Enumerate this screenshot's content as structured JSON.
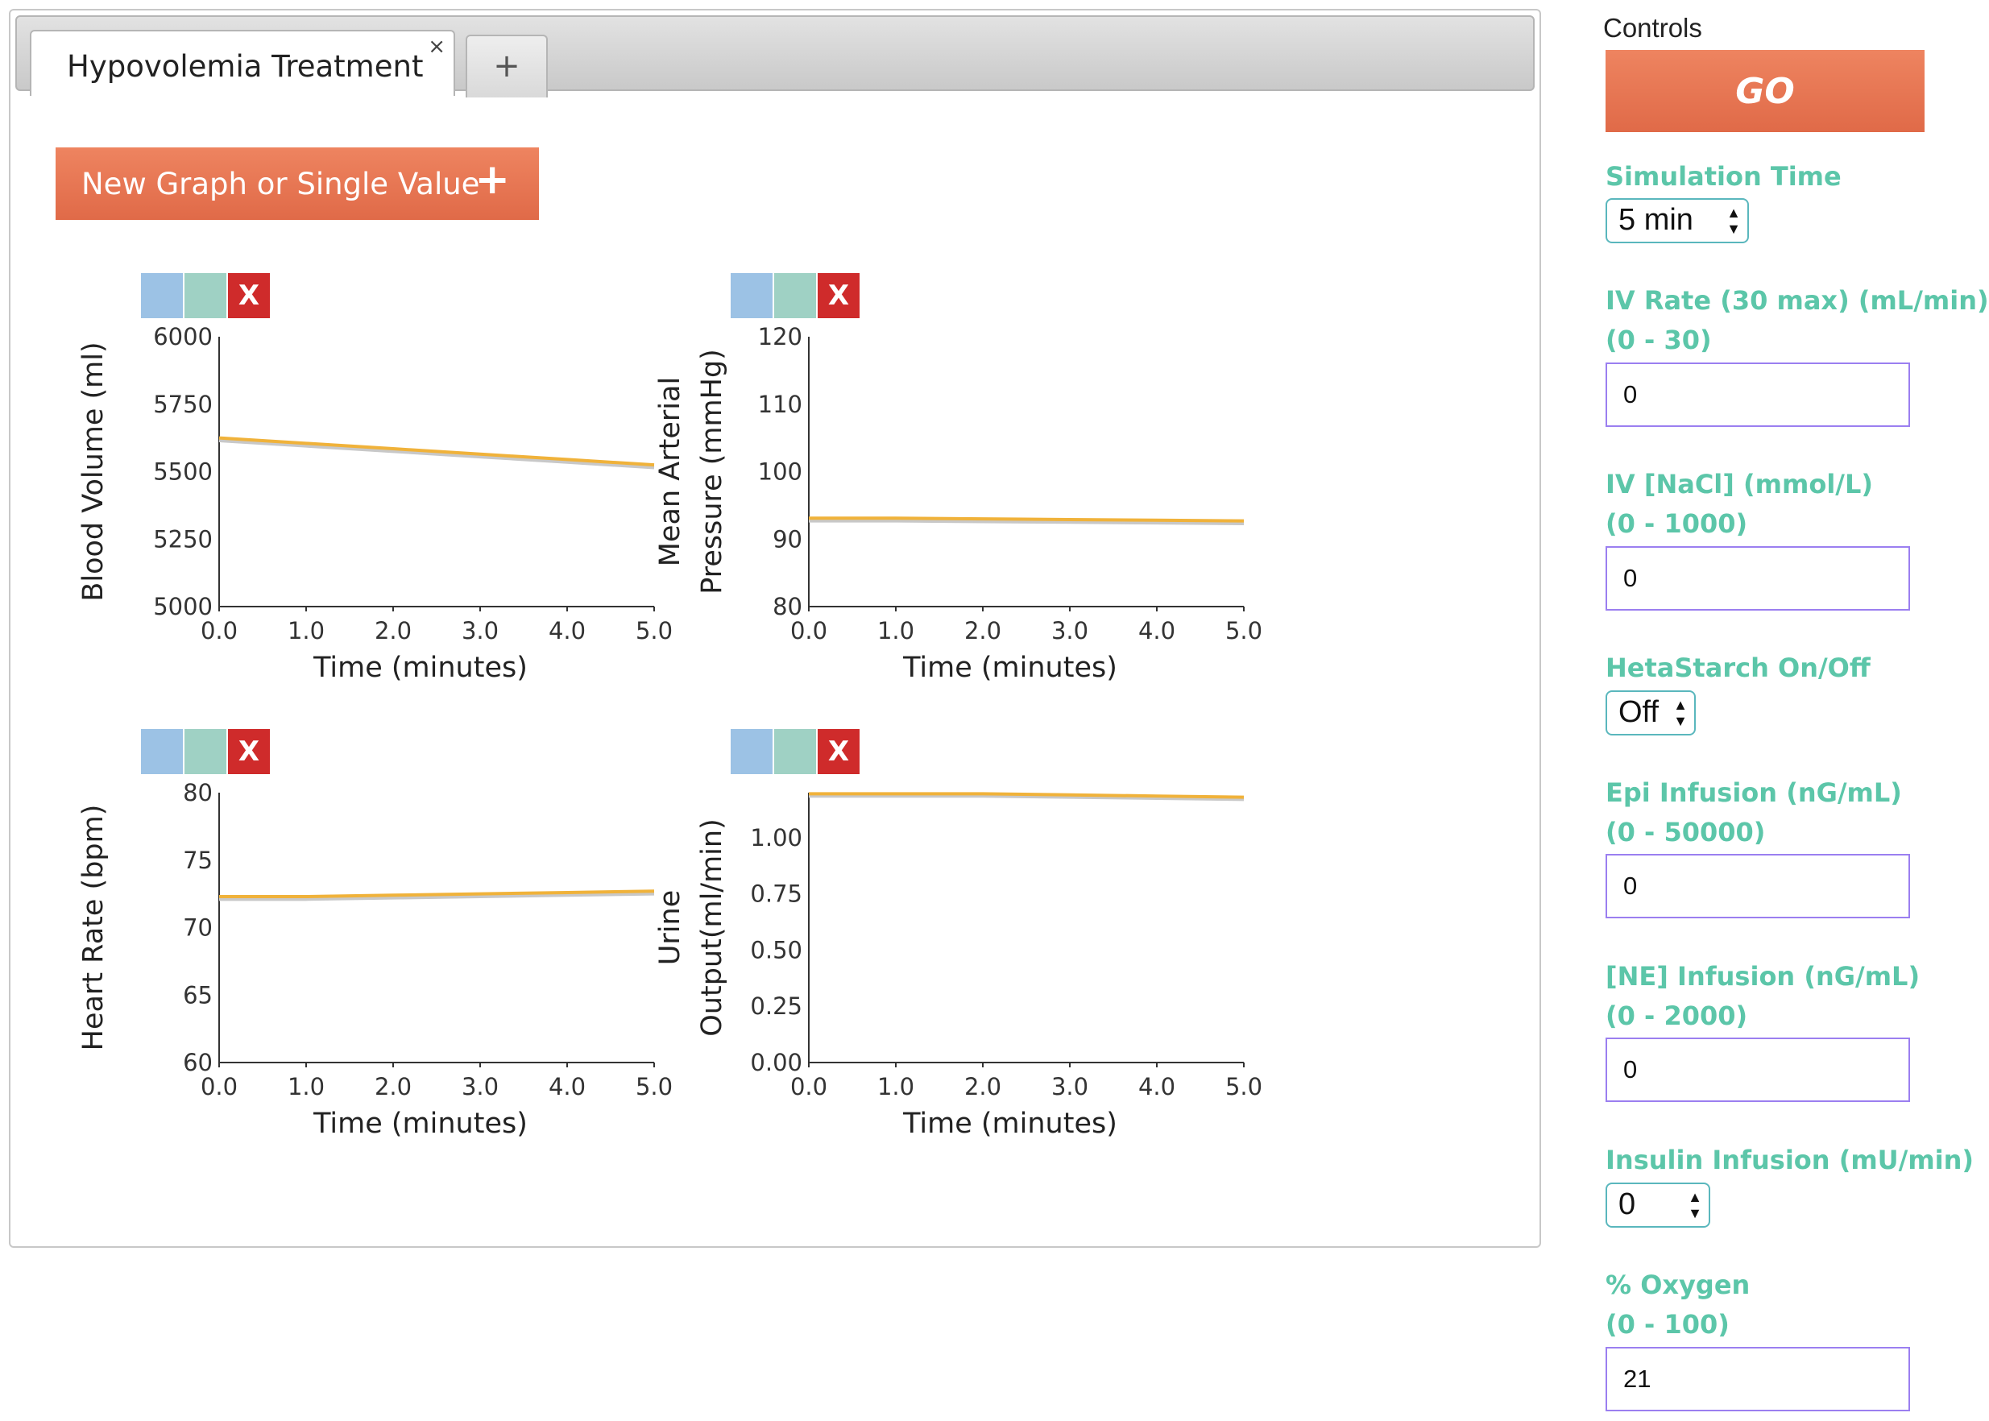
{
  "tab": {
    "label": "Hypovolemia Treatment",
    "close_icon": "×",
    "add_icon": "+"
  },
  "new_graph_button": {
    "label": "New Graph or Single Value",
    "icon": "+"
  },
  "graph_tools": {
    "zoom_icon": "magnifier-icon",
    "pan_icon": "move-icon",
    "close_label": "X"
  },
  "graphs": [
    {
      "id": "blood-volume",
      "ylabel_lines": [
        "Blood Volume (ml)"
      ],
      "xlabel": "Time (minutes)",
      "y_ticks": [
        "6000",
        "5750",
        "5500",
        "5250",
        "5000"
      ],
      "x_ticks": [
        "0.0",
        "1.0",
        "2.0",
        "3.0",
        "4.0",
        "5.0"
      ],
      "ylim": [
        5000,
        6000
      ]
    },
    {
      "id": "mean-arterial-pressure",
      "ylabel_lines": [
        "Mean Arterial",
        "Pressure (mmHg)"
      ],
      "xlabel": "Time (minutes)",
      "y_ticks": [
        "120",
        "110",
        "100",
        "90",
        "80"
      ],
      "x_ticks": [
        "0.0",
        "1.0",
        "2.0",
        "3.0",
        "4.0",
        "5.0"
      ],
      "ylim": [
        80,
        120
      ]
    },
    {
      "id": "heart-rate",
      "ylabel_lines": [
        "Heart Rate (bpm)"
      ],
      "xlabel": "Time (minutes)",
      "y_ticks": [
        "80",
        "75",
        "70",
        "65",
        "60"
      ],
      "x_ticks": [
        "0.0",
        "1.0",
        "2.0",
        "3.0",
        "4.0",
        "5.0"
      ],
      "ylim": [
        60,
        80
      ]
    },
    {
      "id": "urine-output",
      "ylabel_lines": [
        "Urine",
        "Output(ml/min)"
      ],
      "xlabel": "Time (minutes)",
      "y_ticks": [
        "1.00",
        "0.75",
        "0.50",
        "0.25",
        "0.00"
      ],
      "x_ticks": [
        "0.0",
        "1.0",
        "2.0",
        "3.0",
        "4.0",
        "5.0"
      ],
      "ylim": [
        0,
        1.2
      ]
    }
  ],
  "chart_data": [
    {
      "type": "line",
      "xlabel": "Time (minutes)",
      "ylabel": "Blood Volume (ml)",
      "xlim": [
        0,
        5
      ],
      "ylim": [
        5000,
        6000
      ],
      "series": [
        {
          "color": "#f0b23a",
          "x": [
            0,
            1,
            2,
            3,
            4,
            5
          ],
          "y": [
            5625,
            5605,
            5585,
            5565,
            5545,
            5525
          ]
        },
        {
          "color": "#c8c8c8",
          "x": [
            0,
            1,
            2,
            3,
            4,
            5
          ],
          "y": [
            5615,
            5595,
            5575,
            5555,
            5535,
            5515
          ]
        }
      ]
    },
    {
      "type": "line",
      "xlabel": "Time (minutes)",
      "ylabel": "Mean Arterial Pressure (mmHg)",
      "xlim": [
        0,
        5
      ],
      "ylim": [
        80,
        120
      ],
      "series": [
        {
          "color": "#f0b23a",
          "x": [
            0,
            1,
            2,
            3,
            4,
            5
          ],
          "y": [
            93.1,
            93.1,
            93.0,
            92.9,
            92.8,
            92.7
          ]
        },
        {
          "color": "#c8c8c8",
          "x": [
            0,
            1,
            2,
            3,
            4,
            5
          ],
          "y": [
            92.7,
            92.7,
            92.6,
            92.5,
            92.4,
            92.3
          ]
        }
      ]
    },
    {
      "type": "line",
      "xlabel": "Time (minutes)",
      "ylabel": "Heart Rate (bpm)",
      "xlim": [
        0,
        5
      ],
      "ylim": [
        60,
        80
      ],
      "series": [
        {
          "color": "#f0b23a",
          "x": [
            0,
            1,
            2,
            3,
            4,
            5
          ],
          "y": [
            72.3,
            72.3,
            72.4,
            72.5,
            72.6,
            72.7
          ]
        },
        {
          "color": "#c8c8c8",
          "x": [
            0,
            1,
            2,
            3,
            4,
            5
          ],
          "y": [
            72.1,
            72.1,
            72.2,
            72.3,
            72.4,
            72.5
          ]
        }
      ]
    },
    {
      "type": "line",
      "xlabel": "Time (minutes)",
      "ylabel": "Urine Output(ml/min)",
      "xlim": [
        0,
        5
      ],
      "ylim": [
        0,
        1.2
      ],
      "series": [
        {
          "color": "#f0b23a",
          "x": [
            0,
            1,
            2,
            3,
            4,
            5
          ],
          "y": [
            1.195,
            1.195,
            1.195,
            1.19,
            1.185,
            1.18
          ]
        },
        {
          "color": "#c8c8c8",
          "x": [
            0,
            1,
            2,
            3,
            4,
            5
          ],
          "y": [
            1.185,
            1.185,
            1.185,
            1.18,
            1.175,
            1.17
          ]
        }
      ]
    }
  ],
  "controls": {
    "title": "Controls",
    "go_label": "GO",
    "simulation_time": {
      "label": "Simulation Time",
      "value": "5 min"
    },
    "iv_rate": {
      "label_line1": "IV Rate (30 max) (mL/min)",
      "label_line2": "(0 - 30)",
      "value": "0"
    },
    "iv_nacl": {
      "label_line1": "IV [NaCl] (mmol/L)",
      "label_line2": "(0 - 1000)",
      "value": "0"
    },
    "hetastarch": {
      "label": "HetaStarch On/Off",
      "value": "Off"
    },
    "epi": {
      "label_line1": "Epi Infusion (nG/mL)",
      "label_line2": "(0 - 50000)",
      "value": "0"
    },
    "ne": {
      "label_line1": "[NE] Infusion (nG/mL)",
      "label_line2": "(0 - 2000)",
      "value": "0"
    },
    "insulin": {
      "label": "Insulin Infusion (mU/min)",
      "value": "0"
    },
    "oxygen": {
      "label_line1": "% Oxygen",
      "label_line2": "(0 - 100)",
      "value": "21"
    }
  },
  "colors": {
    "accent_orange": "#e67452",
    "label_teal": "#5cc6a9",
    "input_border": "#9b7ff0",
    "line_orange": "#f0b23a",
    "line_gray": "#c8c8c8"
  }
}
